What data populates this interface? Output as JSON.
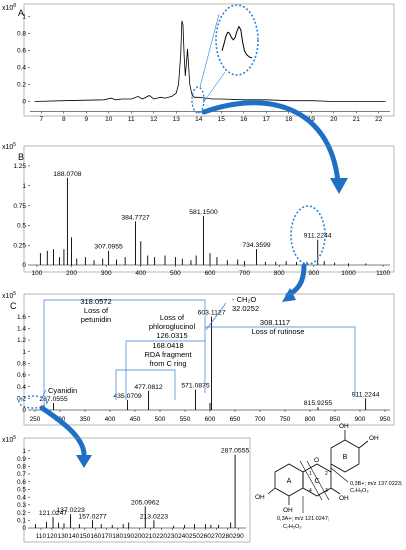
{
  "panels": [
    {
      "id": "A",
      "label": "A",
      "scale_label": "x10",
      "scale_exp": "8",
      "type": "line",
      "xlim": [
        6.5,
        22.5
      ],
      "ylim": [
        -0.1,
        1.1
      ],
      "xticks": [
        7,
        8,
        9,
        10,
        11,
        12,
        13,
        14,
        15,
        16,
        17,
        18,
        19,
        20,
        21,
        22
      ],
      "yticks": [
        0,
        0.2,
        0.4,
        0.6,
        0.8,
        1
      ],
      "ytick_labels": [
        "0",
        "0.2",
        "0.4",
        "0.6",
        "0.8",
        "1"
      ]
    },
    {
      "id": "B",
      "label": "B",
      "scale_label": "x10",
      "scale_exp": "5",
      "type": "bar",
      "xlim": [
        80,
        1120
      ],
      "ylim": [
        0,
        1.35
      ],
      "xticks": [
        100,
        200,
        300,
        400,
        500,
        600,
        700,
        800,
        900,
        1000,
        1100
      ],
      "yticks": [
        0,
        0.25,
        0.5,
        0.75,
        1,
        1.25
      ],
      "ytick_labels": [
        "0",
        "0.25",
        "0.5",
        "0.75",
        "1",
        "1.25"
      ]
    },
    {
      "id": "C",
      "label": "C",
      "scale_label": "x10",
      "scale_exp": "5",
      "type": "bar",
      "xlim": [
        240,
        960
      ],
      "ylim": [
        0,
        1.8
      ],
      "xticks": [
        250,
        300,
        350,
        400,
        450,
        500,
        550,
        600,
        650,
        700,
        750,
        800,
        850,
        900,
        950
      ],
      "yticks": [
        0,
        0.2,
        0.4,
        0.6,
        0.8,
        1,
        1.2,
        1.4,
        1.6
      ],
      "ytick_labels": [
        "0",
        "0.2",
        "0.4",
        "0.6",
        "0.8",
        "1",
        "1.2",
        "1.4",
        "1.6"
      ]
    },
    {
      "id": "D",
      "label": "",
      "scale_label": "x10",
      "scale_exp": "5",
      "type": "bar",
      "xlim": [
        100,
        297
      ],
      "ylim": [
        0,
        1.05
      ],
      "xticks": [
        110,
        120,
        130,
        140,
        150,
        160,
        170,
        180,
        190,
        200,
        210,
        220,
        230,
        240,
        250,
        260,
        270,
        280,
        290
      ],
      "yticks": [
        0,
        0.1,
        0.2,
        0.3,
        0.4,
        0.5,
        0.6,
        0.7,
        0.8,
        0.9,
        1
      ],
      "ytick_labels": [
        "0",
        "0.1",
        "0.2",
        "0.3",
        "0.4",
        "0.5",
        "0.6",
        "0.7",
        "0.8",
        "0.9",
        "1"
      ]
    }
  ],
  "chart_data": [
    {
      "type": "line",
      "x": [
        6.7,
        8,
        9,
        9.8,
        10.1,
        10.3,
        10.6,
        11.0,
        11.3,
        11.5,
        11.8,
        12.0,
        12.3,
        12.5,
        12.8,
        13.0,
        13.1,
        13.2,
        13.25,
        13.3,
        13.35,
        13.4,
        13.45,
        13.5,
        13.6,
        13.7,
        13.8,
        14.0,
        14.3,
        14.6,
        15.0,
        16,
        17,
        18,
        19,
        20,
        21,
        22.3
      ],
      "y": [
        0.0,
        0.01,
        0.015,
        0.02,
        0.04,
        0.02,
        0.03,
        0.03,
        0.06,
        0.03,
        0.07,
        0.03,
        0.05,
        0.04,
        0.06,
        0.1,
        0.2,
        0.55,
        0.95,
        0.9,
        0.55,
        0.3,
        0.45,
        0.62,
        0.2,
        0.08,
        0.05,
        0.05,
        0.04,
        0.03,
        0.03,
        0.02,
        0.02,
        0.01,
        0.01,
        0.0,
        0.0,
        0.0
      ],
      "inset": {
        "x": [
          0,
          1,
          2,
          3,
          4,
          5,
          6,
          7,
          8,
          9,
          10,
          11,
          12,
          13,
          14,
          15,
          16
        ],
        "y": [
          0.3,
          0.45,
          0.62,
          0.72,
          0.7,
          0.6,
          0.55,
          0.6,
          0.75,
          0.85,
          0.78,
          0.5,
          0.3,
          0.22,
          0.18,
          0.15,
          0.14
        ]
      }
    },
    {
      "type": "bar",
      "x": [
        110,
        130,
        148,
        165,
        178,
        188.0708,
        200,
        215,
        240,
        265,
        290,
        307.0955,
        330,
        355,
        384.7727,
        400,
        420,
        440,
        470,
        500,
        520,
        545,
        560,
        581.15,
        600,
        620,
        650,
        680,
        700,
        734.3599,
        760,
        790,
        820,
        850,
        880,
        911.2244,
        930,
        960,
        1000,
        1050
      ],
      "y": [
        0.15,
        0.18,
        0.2,
        0.1,
        0.2,
        1.1,
        0.35,
        0.08,
        0.1,
        0.06,
        0.08,
        0.18,
        0.07,
        0.1,
        0.55,
        0.3,
        0.12,
        0.1,
        0.12,
        0.1,
        0.08,
        0.06,
        0.12,
        0.62,
        0.15,
        0.1,
        0.06,
        0.07,
        0.05,
        0.2,
        0.04,
        0.04,
        0.05,
        0.04,
        0.04,
        0.32,
        0.05,
        0.03,
        0.02,
        0.02
      ],
      "labels": [
        {
          "x": 188.0708,
          "text": "188.0708"
        },
        {
          "x": 307.0955,
          "text": "307.0955"
        },
        {
          "x": 384.7727,
          "text": "384.7727"
        },
        {
          "x": 581.15,
          "text": "581.1500"
        },
        {
          "x": 734.3599,
          "text": "734.3599"
        },
        {
          "x": 911.2244,
          "text": "911.2244"
        }
      ]
    },
    {
      "type": "bar",
      "x": [
        287.0555,
        435.0709,
        477.0812,
        571.0875,
        600,
        603.1127,
        815.9255,
        911.2244
      ],
      "y": [
        0.12,
        0.17,
        0.33,
        0.35,
        0.12,
        1.6,
        0.05,
        0.2
      ],
      "labels": [
        {
          "x": 287.0555,
          "text": "287.0555"
        },
        {
          "x": 435.0709,
          "text": "435.0709"
        },
        {
          "x": 477.0812,
          "text": "477.0812"
        },
        {
          "x": 571.0875,
          "text": "571.0875"
        },
        {
          "x": 603.1127,
          "text": "603.1127"
        },
        {
          "x": 815.9255,
          "text": "815.9255"
        },
        {
          "x": 911.2244,
          "text": "911.2244"
        }
      ]
    },
    {
      "type": "bar",
      "x": [
        105,
        115,
        121.0247,
        126,
        131,
        137.0223,
        145,
        157.0277,
        165,
        175,
        185,
        190,
        205.0962,
        213.0223,
        231,
        241,
        250,
        260,
        265,
        272,
        283,
        287.0555
      ],
      "y": [
        0.05,
        0.08,
        0.14,
        0.07,
        0.06,
        0.18,
        0.05,
        0.1,
        0.05,
        0.04,
        0.05,
        0.07,
        0.28,
        0.1,
        0.03,
        0.04,
        0.05,
        0.05,
        0.04,
        0.04,
        0.07,
        0.95
      ],
      "labels": [
        {
          "x": 121.0247,
          "text": "121.0247"
        },
        {
          "x": 137.0223,
          "text": "137.0223"
        },
        {
          "x": 157.0277,
          "text": "157.0277"
        },
        {
          "x": 205.0962,
          "text": "205.0962"
        },
        {
          "x": 213.0223,
          "text": "213.0223"
        },
        {
          "x": 287.0555,
          "text": "287.0555"
        }
      ]
    }
  ],
  "annotations": {
    "c_318": "318.0572",
    "c_318_a": "Loss of",
    "c_318_b": "petunidin",
    "c_phloro_a": "Loss of",
    "c_phloro_b": "phloroglucinol",
    "c_126": "126.0315",
    "c_ch2o": "- CH₂O",
    "c_32": "32.0252",
    "c_168": "168.0418",
    "c_rda_a": "RDA fragment",
    "c_rda_b": "from C ring",
    "c_308": "308.1117",
    "c_308_b": "Loss of rutinose",
    "c_cyanidin": "Cyanidin"
  },
  "structure": {
    "ring_a": "A",
    "ring_b": "B",
    "ring_c": "C",
    "oh_label": "OH",
    "o_label": "O",
    "lbl_1": "1",
    "lbl_2": "2",
    "lbl_3": "3",
    "lbl_4": "4",
    "frag_b_1": "0,3B+; m/z 137.0223;",
    "frag_b_2": "C₇H₅O₃",
    "frag_a_1": "0,3A+; m/z 121.0247;",
    "frag_a_2": "C₇H₅O₂"
  },
  "colors": {
    "arrow_blue": "#1f6fc5",
    "annotation_blue": "#3a7fd5",
    "dotted_blue": "#2a86d8",
    "trace": "#000000"
  }
}
